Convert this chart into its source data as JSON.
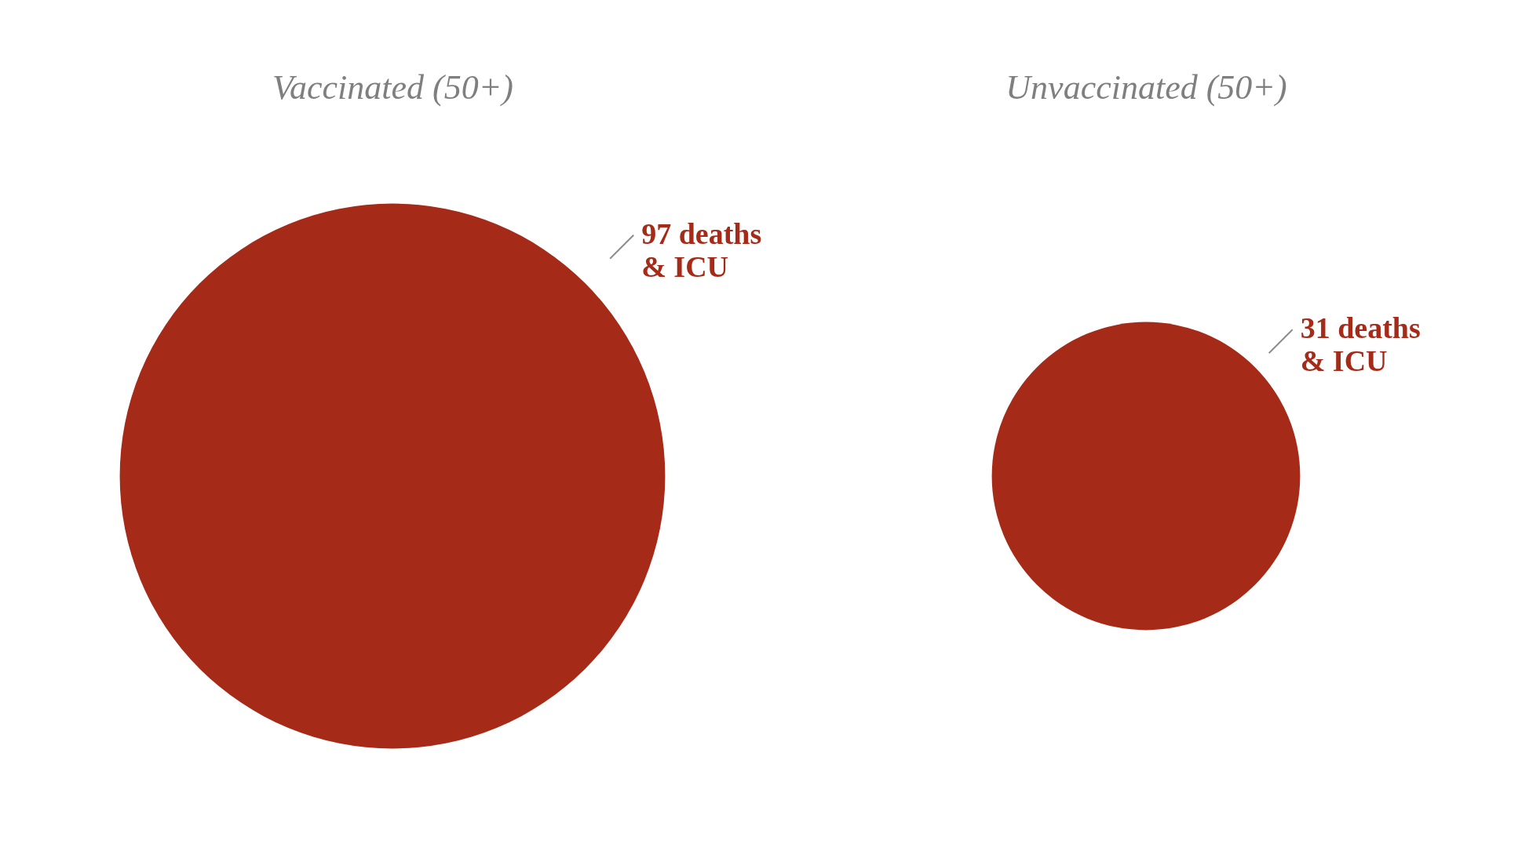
{
  "chart_data": {
    "type": "other",
    "categories": [
      "Vaccinated (50+)",
      "Unvaccinated (50+)"
    ],
    "series": [
      {
        "color": "#a52a18",
        "values": [
          97,
          31
        ],
        "value_labels": [
          "97 deaths\n& ICU",
          "31 deaths\n& ICU"
        ]
      }
    ]
  }
}
